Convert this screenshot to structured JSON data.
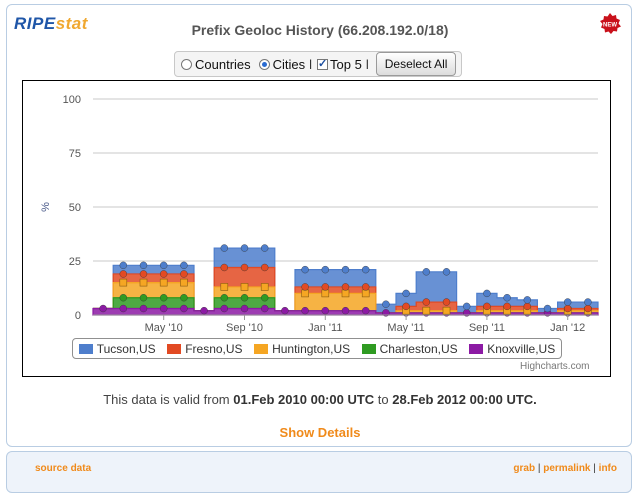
{
  "header": {
    "logo_ripe": "RIPE",
    "logo_stat": "stat",
    "title": "Prefix Geoloc History (66.208.192.0/18)"
  },
  "controls": {
    "countries_label": "Countries",
    "cities_label": "Cities",
    "top5_label": "Top 5",
    "separator": "l",
    "deselect_label": "Deselect All",
    "selected_view": "Cities",
    "top5_checked": true
  },
  "chart_data": {
    "type": "area",
    "stacked": true,
    "step": true,
    "ylabel": "%",
    "ylim": [
      0,
      100
    ],
    "yticks": [
      0,
      25,
      50,
      75,
      100
    ],
    "xticks": [
      "May '10",
      "Sep '10",
      "Jan '11",
      "May '11",
      "Sep '11",
      "Jan '12"
    ],
    "x": [
      "2010-02",
      "2010-03",
      "2010-04",
      "2010-05",
      "2010-06",
      "2010-07",
      "2010-08",
      "2010-09",
      "2010-10",
      "2010-11",
      "2010-12",
      "2011-01",
      "2011-02",
      "2011-03",
      "2011-04",
      "2011-05",
      "2011-06",
      "2011-07",
      "2011-08",
      "2011-09",
      "2011-10",
      "2011-11",
      "2011-12",
      "2012-01",
      "2012-02"
    ],
    "series": [
      {
        "name": "Knoxville,US",
        "color": "#8c1aa4",
        "values": [
          3,
          3,
          3,
          3,
          3,
          2,
          3,
          3,
          3,
          2,
          2,
          2,
          2,
          2,
          1,
          1,
          1,
          1,
          1,
          1,
          1,
          1,
          1,
          1,
          1
        ]
      },
      {
        "name": "Charleston,US",
        "color": "#2f9b22",
        "values": [
          0,
          5,
          5,
          5,
          5,
          0,
          5,
          5,
          5,
          0,
          0,
          0,
          0,
          0,
          0,
          0,
          0,
          0,
          0,
          0,
          0,
          0,
          0,
          0,
          0
        ]
      },
      {
        "name": "Huntington,US",
        "color": "#f5a623",
        "values": [
          0,
          7,
          7,
          7,
          7,
          0,
          5,
          5,
          5,
          0,
          8,
          8,
          8,
          8,
          0,
          1,
          1,
          1,
          0,
          1,
          1,
          1,
          0,
          1,
          1
        ]
      },
      {
        "name": "Fresno,US",
        "color": "#e24a23",
        "values": [
          0,
          4,
          4,
          4,
          4,
          0,
          9,
          9,
          9,
          0,
          3,
          3,
          3,
          3,
          0,
          2,
          4,
          4,
          0,
          2,
          2,
          2,
          0,
          1,
          1
        ]
      },
      {
        "name": "Tucson,US",
        "color": "#4e7ecc",
        "values": [
          0,
          4,
          4,
          4,
          4,
          0,
          9,
          9,
          9,
          0,
          8,
          8,
          8,
          8,
          4,
          6,
          14,
          14,
          3,
          6,
          4,
          3,
          2,
          3,
          3
        ]
      }
    ]
  },
  "credit": "Highcharts.com",
  "validity": {
    "prefix": "This data is valid from",
    "from": "01.Feb 2010 00:00 UTC",
    "middle": "to",
    "to": "28.Feb 2012 00:00 UTC."
  },
  "details_label": "Show Details",
  "footer": {
    "source_label": "source data",
    "grab_label": "grab",
    "permalink_label": "permalink",
    "info_label": "info",
    "separator": "|"
  }
}
